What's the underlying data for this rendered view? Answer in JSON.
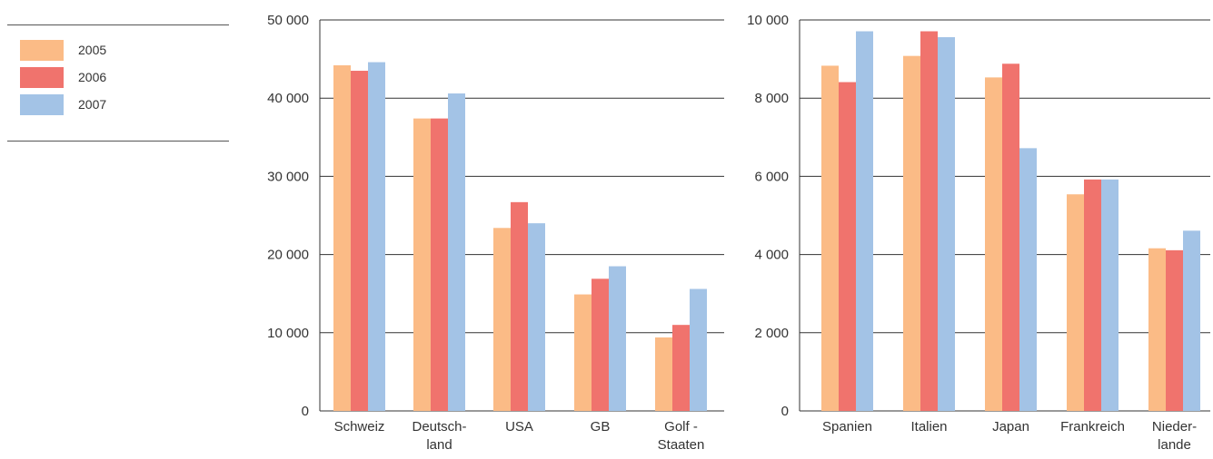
{
  "legend": {
    "items": [
      {
        "name": "2005",
        "color": "#FBBB86"
      },
      {
        "name": "2006",
        "color": "#F0736D"
      },
      {
        "name": "2007",
        "color": "#A3C3E6"
      }
    ]
  },
  "chart_data": [
    {
      "type": "bar",
      "categories": [
        [
          "Schweiz"
        ],
        [
          "Deutsch-",
          "land"
        ],
        [
          "USA"
        ],
        [
          "GB"
        ],
        [
          "Golf -",
          "Staaten"
        ]
      ],
      "series": [
        {
          "name": "2005",
          "color": "#FBBB86",
          "values": [
            44200,
            37400,
            23400,
            14900,
            9400
          ]
        },
        {
          "name": "2006",
          "color": "#F0736D",
          "values": [
            43500,
            37400,
            26700,
            16900,
            11000
          ]
        },
        {
          "name": "2007",
          "color": "#A3C3E6",
          "values": [
            44600,
            40600,
            24000,
            18500,
            15600
          ]
        }
      ],
      "ylim": [
        0,
        50000
      ],
      "yticks": [
        0,
        10000,
        20000,
        30000,
        40000,
        50000
      ],
      "ytick_labels": [
        "0",
        "10 000",
        "20 000",
        "30 000",
        "40 000",
        "50 000"
      ],
      "grid": true
    },
    {
      "type": "bar",
      "categories": [
        [
          "Spanien"
        ],
        [
          "Italien"
        ],
        [
          "Japan"
        ],
        [
          "Frankreich"
        ],
        [
          "Nieder-",
          "lande"
        ]
      ],
      "series": [
        {
          "name": "2005",
          "color": "#FBBB86",
          "values": [
            8830,
            9080,
            8530,
            5540,
            4160
          ]
        },
        {
          "name": "2006",
          "color": "#F0736D",
          "values": [
            8410,
            9710,
            8880,
            5920,
            4110
          ]
        },
        {
          "name": "2007",
          "color": "#A3C3E6",
          "values": [
            9710,
            9560,
            6720,
            5920,
            4610
          ]
        }
      ],
      "ylim": [
        0,
        10000
      ],
      "yticks": [
        0,
        2000,
        4000,
        6000,
        8000,
        10000
      ],
      "ytick_labels": [
        "0",
        "2 000",
        "4 000",
        "6 000",
        "8 000",
        "10 000"
      ],
      "grid": true
    }
  ]
}
